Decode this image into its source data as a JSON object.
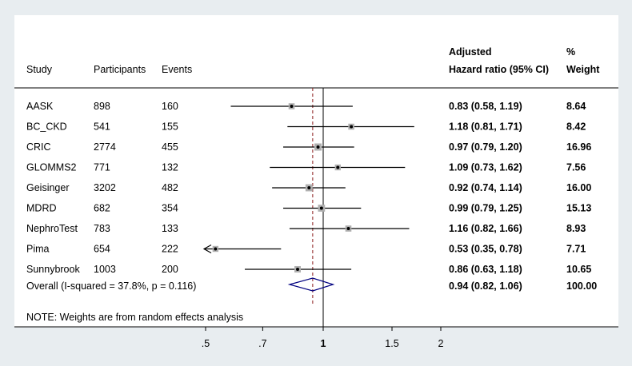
{
  "chart_data": {
    "type": "forest",
    "columns": {
      "study": "Study",
      "participants": "Participants",
      "events": "Events",
      "hr_line1": "Adjusted",
      "hr_line2": "Hazard ratio (95% CI)",
      "weight_line1": "%",
      "weight_line2": "Weight"
    },
    "studies": [
      {
        "name": "AASK",
        "participants": "898",
        "events": "160",
        "hr": 0.83,
        "lo": 0.58,
        "hi": 1.19,
        "hr_text": "0.83 (0.58, 1.19)",
        "weight": 8.64,
        "weight_text": "8.64"
      },
      {
        "name": "BC_CKD",
        "participants": "541",
        "events": "155",
        "hr": 1.18,
        "lo": 0.81,
        "hi": 1.71,
        "hr_text": "1.18 (0.81, 1.71)",
        "weight": 8.42,
        "weight_text": "8.42"
      },
      {
        "name": "CRIC",
        "participants": "2774",
        "events": "455",
        "hr": 0.97,
        "lo": 0.79,
        "hi": 1.2,
        "hr_text": "0.97 (0.79, 1.20)",
        "weight": 16.96,
        "weight_text": "16.96"
      },
      {
        "name": "GLOMMS2",
        "participants": "771",
        "events": "132",
        "hr": 1.09,
        "lo": 0.73,
        "hi": 1.62,
        "hr_text": "1.09 (0.73, 1.62)",
        "weight": 7.56,
        "weight_text": "7.56"
      },
      {
        "name": "Geisinger",
        "participants": "3202",
        "events": "482",
        "hr": 0.92,
        "lo": 0.74,
        "hi": 1.14,
        "hr_text": "0.92 (0.74, 1.14)",
        "weight": 16.0,
        "weight_text": "16.00"
      },
      {
        "name": "MDRD",
        "participants": "682",
        "events": "354",
        "hr": 0.99,
        "lo": 0.79,
        "hi": 1.25,
        "hr_text": "0.99 (0.79, 1.25)",
        "weight": 15.13,
        "weight_text": "15.13"
      },
      {
        "name": "NephroTest",
        "participants": "783",
        "events": "133",
        "hr": 1.16,
        "lo": 0.82,
        "hi": 1.66,
        "hr_text": "1.16 (0.82, 1.66)",
        "weight": 8.93,
        "weight_text": "8.93"
      },
      {
        "name": "Pima",
        "participants": "654",
        "events": "222",
        "hr": 0.53,
        "lo": 0.35,
        "hi": 0.78,
        "hr_text": "0.53 (0.35, 0.78)",
        "weight": 7.71,
        "weight_text": "7.71"
      },
      {
        "name": "Sunnybrook",
        "participants": "1003",
        "events": "200",
        "hr": 0.86,
        "lo": 0.63,
        "hi": 1.18,
        "hr_text": "0.86 (0.63, 1.18)",
        "weight": 10.65,
        "weight_text": "10.65"
      }
    ],
    "overall": {
      "label": "Overall  (I-squared = 37.8%, p = 0.116)",
      "hr": 0.94,
      "lo": 0.82,
      "hi": 1.06,
      "hr_text": "0.94 (0.82, 1.06)",
      "weight_text": "100.00"
    },
    "note": "NOTE: Weights are from random effects analysis",
    "x_axis": {
      "scale": "log",
      "ticks": [
        0.5,
        0.7,
        1,
        1.5,
        2
      ],
      "tick_labels": [
        ".5",
        ".7",
        "1",
        "1.5",
        "2"
      ],
      "null_line": 1
    },
    "colors": {
      "ci_line": "#000000",
      "box_fill": "#b0b0b0",
      "diamond": "#000080",
      "overall_line": "#8b1a1a",
      "null_line": "#000000"
    }
  }
}
